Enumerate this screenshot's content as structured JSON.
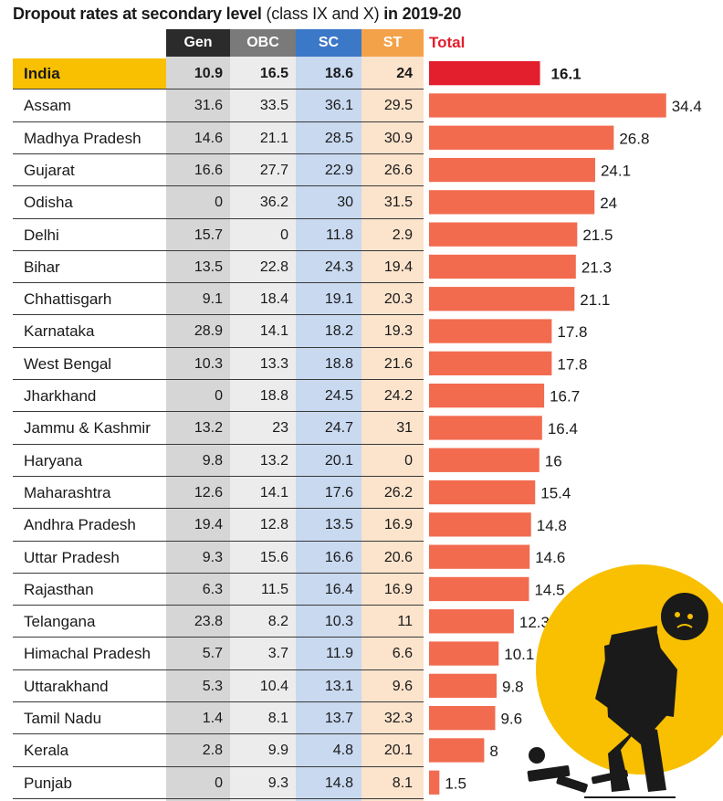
{
  "title": {
    "bold_part": "Dropout rates at secondary level",
    "normal_part": "(class IX and X)",
    "bold_tail": "in 2019-20"
  },
  "columns": [
    "Gen",
    "OBC",
    "SC",
    "ST",
    "Total"
  ],
  "colors": {
    "gen_header": "#2b2b2b",
    "obc_header": "#7a7a7a",
    "sc_header": "#3c78c8",
    "st_header": "#f4a24a",
    "gen_cell": "#d6d6d6",
    "obc_cell": "#ececec",
    "sc_cell": "#c8d9f0",
    "st_cell": "#fbe3cc",
    "india_bar": "#e31e2d",
    "state_bar": "#f26b4f",
    "india_highlight": "#f8c000",
    "total_header": "#e31e2d"
  },
  "illustration": "student-dropping-books-icon",
  "chart_data": {
    "type": "table",
    "columns": [
      "Gen",
      "OBC",
      "SC",
      "ST",
      "Total"
    ],
    "rows": [
      {
        "state": "India",
        "gen": "10.9",
        "obc": "16.5",
        "sc": "18.6",
        "st": "24",
        "total": 16.1
      },
      {
        "state": "Assam",
        "gen": "31.6",
        "obc": "33.5",
        "sc": "36.1",
        "st": "29.5",
        "total": 34.4
      },
      {
        "state": "Madhya Pradesh",
        "gen": "14.6",
        "obc": "21.1",
        "sc": "28.5",
        "st": "30.9",
        "total": 26.8
      },
      {
        "state": "Gujarat",
        "gen": "16.6",
        "obc": "27.7",
        "sc": "22.9",
        "st": "26.6",
        "total": 24.1
      },
      {
        "state": "Odisha",
        "gen": "0",
        "obc": "36.2",
        "sc": "30",
        "st": "31.5",
        "total": 24
      },
      {
        "state": "Delhi",
        "gen": "15.7",
        "obc": "0",
        "sc": "11.8",
        "st": "2.9",
        "total": 21.5
      },
      {
        "state": "Bihar",
        "gen": "13.5",
        "obc": "22.8",
        "sc": "24.3",
        "st": "19.4",
        "total": 21.3
      },
      {
        "state": "Chhattisgarh",
        "gen": "9.1",
        "obc": "18.4",
        "sc": "19.1",
        "st": "20.3",
        "total": 21.1
      },
      {
        "state": "Karnataka",
        "gen": "28.9",
        "obc": "14.1",
        "sc": "18.2",
        "st": "19.3",
        "total": 17.8
      },
      {
        "state": "West Bengal",
        "gen": "10.3",
        "obc": "13.3",
        "sc": "18.8",
        "st": "21.6",
        "total": 17.8
      },
      {
        "state": "Jharkhand",
        "gen": "0",
        "obc": "18.8",
        "sc": "24.5",
        "st": "24.2",
        "total": 16.7
      },
      {
        "state": "Jammu & Kashmir",
        "gen": "13.2",
        "obc": "23",
        "sc": "24.7",
        "st": "31",
        "total": 16.4
      },
      {
        "state": "Haryana",
        "gen": "9.8",
        "obc": "13.2",
        "sc": "20.1",
        "st": "0",
        "total": 16
      },
      {
        "state": "Maharashtra",
        "gen": "12.6",
        "obc": "14.1",
        "sc": "17.6",
        "st": "26.2",
        "total": 15.4
      },
      {
        "state": "Andhra Pradesh",
        "gen": "19.4",
        "obc": "12.8",
        "sc": "13.5",
        "st": "16.9",
        "total": 14.8
      },
      {
        "state": "Uttar Pradesh",
        "gen": "9.3",
        "obc": "15.6",
        "sc": "16.6",
        "st": "20.6",
        "total": 14.6
      },
      {
        "state": "Rajasthan",
        "gen": "6.3",
        "obc": "11.5",
        "sc": "16.4",
        "st": "16.9",
        "total": 14.5
      },
      {
        "state": "Telangana",
        "gen": "23.8",
        "obc": "8.2",
        "sc": "10.3",
        "st": "11",
        "total": 12.3
      },
      {
        "state": "Himachal Pradesh",
        "gen": "5.7",
        "obc": "3.7",
        "sc": "11.9",
        "st": "6.6",
        "total": 10.1
      },
      {
        "state": "Uttarakhand",
        "gen": "5.3",
        "obc": "10.4",
        "sc": "13.1",
        "st": "9.6",
        "total": 9.8
      },
      {
        "state": "Tamil Nadu",
        "gen": "1.4",
        "obc": "8.1",
        "sc": "13.7",
        "st": "32.3",
        "total": 9.6
      },
      {
        "state": "Kerala",
        "gen": "2.8",
        "obc": "9.9",
        "sc": "4.8",
        "st": "20.1",
        "total": 8
      },
      {
        "state": "Punjab",
        "gen": "0",
        "obc": "9.3",
        "sc": "14.8",
        "st": "8.1",
        "total": 1.5
      }
    ]
  }
}
